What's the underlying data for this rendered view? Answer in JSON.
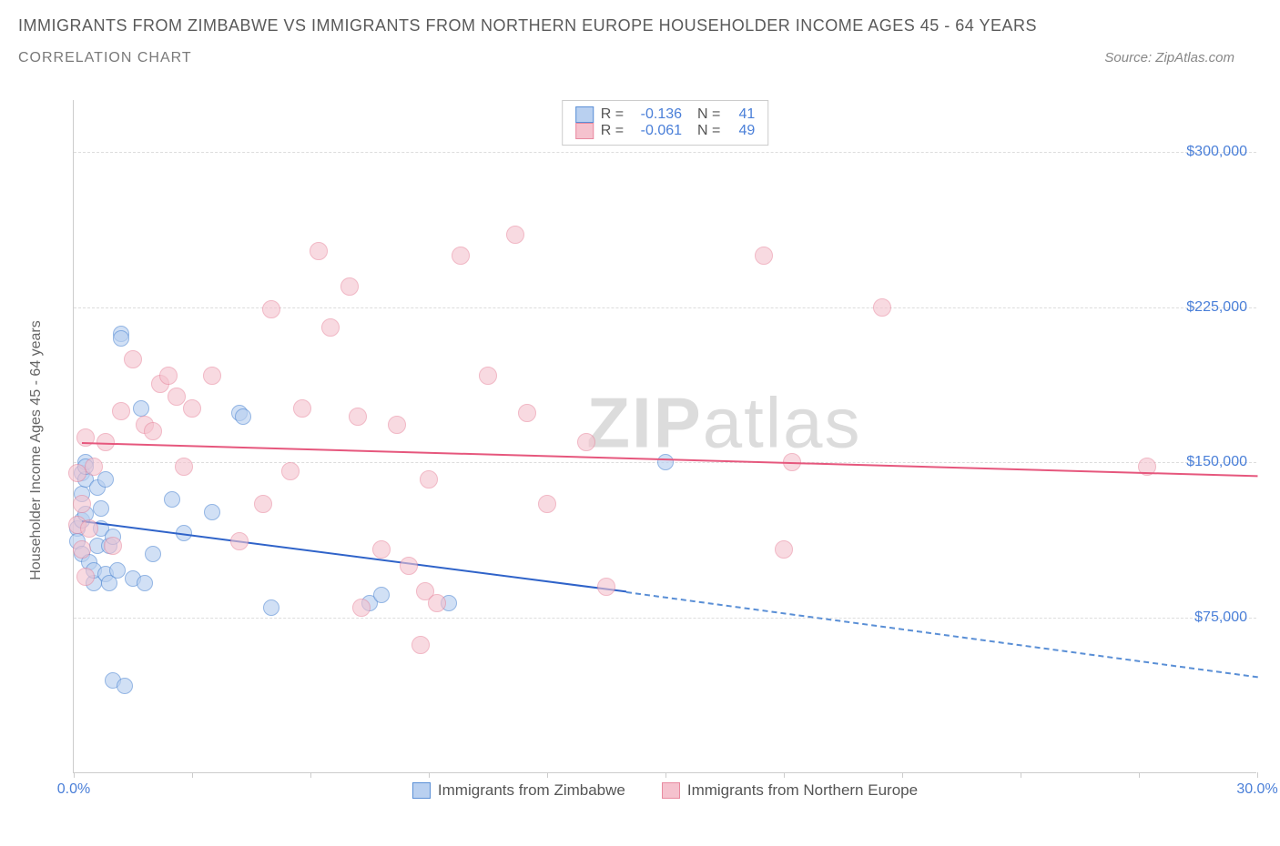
{
  "title": "IMMIGRANTS FROM ZIMBABWE VS IMMIGRANTS FROM NORTHERN EUROPE HOUSEHOLDER INCOME AGES 45 - 64 YEARS",
  "subtitle": "CORRELATION CHART",
  "source_label": "Source:",
  "source_name": "ZipAtlas.com",
  "watermark_a": "ZIP",
  "watermark_b": "atlas",
  "chart": {
    "type": "scatter",
    "yaxis_label": "Householder Income Ages 45 - 64 years",
    "x_domain": [
      0,
      30
    ],
    "y_domain": [
      0,
      325000
    ],
    "y_ticks": [
      75000,
      150000,
      225000,
      300000
    ],
    "y_tick_labels": [
      "$75,000",
      "$150,000",
      "$225,000",
      "$300,000"
    ],
    "x_ticks": [
      0,
      3,
      6,
      9,
      12,
      15,
      18,
      21,
      24,
      27,
      30
    ],
    "x_tick_labels": {
      "0": "0.0%",
      "30": "30.0%"
    },
    "grid_color": "#dddddd",
    "axis_color": "#cccccc",
    "tick_label_color": "#4a7fd8",
    "background_color": "#ffffff",
    "series": [
      {
        "name": "Immigrants from Zimbabwe",
        "fill_color": "#b9d0f0",
        "stroke_color": "#5a8fd6",
        "opacity": 0.65,
        "marker_radius": 9,
        "legend": {
          "R": "-0.136",
          "N": "41"
        },
        "trend": {
          "x1": 0.2,
          "y1": 122000,
          "x2": 14,
          "y2": 88000,
          "solid_color": "#2f63c9",
          "x2d": 30,
          "y2d": 47000,
          "dash_color": "#5a8fd6"
        },
        "points": [
          [
            0.1,
            118000
          ],
          [
            0.1,
            112000
          ],
          [
            0.2,
            135000
          ],
          [
            0.2,
            145000
          ],
          [
            0.2,
            122000
          ],
          [
            0.2,
            106000
          ],
          [
            0.3,
            142000
          ],
          [
            0.3,
            125000
          ],
          [
            0.3,
            150000
          ],
          [
            0.3,
            148000
          ],
          [
            0.4,
            102000
          ],
          [
            0.5,
            92000
          ],
          [
            0.5,
            98000
          ],
          [
            0.6,
            138000
          ],
          [
            0.6,
            110000
          ],
          [
            0.7,
            118000
          ],
          [
            0.7,
            128000
          ],
          [
            0.8,
            96000
          ],
          [
            0.8,
            142000
          ],
          [
            0.9,
            110000
          ],
          [
            0.9,
            92000
          ],
          [
            1.0,
            114000
          ],
          [
            1.0,
            45000
          ],
          [
            1.1,
            98000
          ],
          [
            1.2,
            212000
          ],
          [
            1.2,
            210000
          ],
          [
            1.3,
            42000
          ],
          [
            1.5,
            94000
          ],
          [
            1.7,
            176000
          ],
          [
            1.8,
            92000
          ],
          [
            2.0,
            106000
          ],
          [
            2.5,
            132000
          ],
          [
            2.8,
            116000
          ],
          [
            3.5,
            126000
          ],
          [
            4.2,
            174000
          ],
          [
            4.3,
            172000
          ],
          [
            5.0,
            80000
          ],
          [
            7.5,
            82000
          ],
          [
            7.8,
            86000
          ],
          [
            9.5,
            82000
          ],
          [
            15.0,
            150000
          ]
        ]
      },
      {
        "name": "Immigrants from Northern Europe",
        "fill_color": "#f5c2ce",
        "stroke_color": "#e88aa0",
        "opacity": 0.6,
        "marker_radius": 10,
        "legend": {
          "R": "-0.061",
          "N": "49"
        },
        "trend": {
          "x1": 0.2,
          "y1": 160000,
          "x2": 30,
          "y2": 144000,
          "solid_color": "#e6577d"
        },
        "points": [
          [
            0.1,
            120000
          ],
          [
            0.1,
            145000
          ],
          [
            0.2,
            130000
          ],
          [
            0.2,
            108000
          ],
          [
            0.3,
            95000
          ],
          [
            0.3,
            162000
          ],
          [
            0.4,
            118000
          ],
          [
            0.5,
            148000
          ],
          [
            0.8,
            160000
          ],
          [
            1.0,
            110000
          ],
          [
            1.2,
            175000
          ],
          [
            1.5,
            200000
          ],
          [
            1.8,
            168000
          ],
          [
            2.0,
            165000
          ],
          [
            2.2,
            188000
          ],
          [
            2.4,
            192000
          ],
          [
            2.6,
            182000
          ],
          [
            2.8,
            148000
          ],
          [
            3.0,
            176000
          ],
          [
            3.5,
            192000
          ],
          [
            4.2,
            112000
          ],
          [
            4.8,
            130000
          ],
          [
            5.0,
            224000
          ],
          [
            5.5,
            146000
          ],
          [
            5.8,
            176000
          ],
          [
            6.2,
            252000
          ],
          [
            6.5,
            215000
          ],
          [
            7.0,
            235000
          ],
          [
            7.2,
            172000
          ],
          [
            7.3,
            80000
          ],
          [
            7.8,
            108000
          ],
          [
            8.2,
            168000
          ],
          [
            8.5,
            100000
          ],
          [
            8.8,
            62000
          ],
          [
            8.9,
            88000
          ],
          [
            9.0,
            142000
          ],
          [
            9.2,
            82000
          ],
          [
            9.8,
            250000
          ],
          [
            10.5,
            192000
          ],
          [
            11.2,
            260000
          ],
          [
            11.5,
            174000
          ],
          [
            12.0,
            130000
          ],
          [
            13.0,
            160000
          ],
          [
            13.5,
            90000
          ],
          [
            17.5,
            250000
          ],
          [
            18.0,
            108000
          ],
          [
            18.2,
            150000
          ],
          [
            20.5,
            225000
          ],
          [
            27.2,
            148000
          ]
        ]
      }
    ]
  }
}
